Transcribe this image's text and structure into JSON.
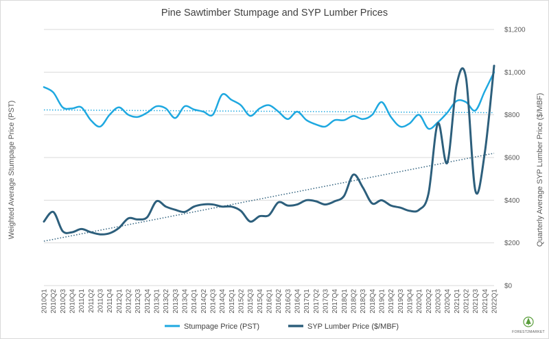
{
  "chart_data": {
    "type": "line",
    "title": "Pine Sawtimber Stumpage and SYP Lumber Prices",
    "ylabel_left": "Weighted Average Stumpage Price (PST)",
    "ylabel_right": "Quarterly Average SYP Lumber Price ($/MBF)",
    "categories": [
      "2010Q1",
      "2010Q2",
      "2010Q3",
      "2010Q4",
      "2011Q1",
      "2011Q2",
      "2011Q3",
      "2011Q4",
      "2012Q1",
      "2012Q2",
      "2012Q3",
      "2012Q4",
      "2013Q1",
      "2013Q2",
      "2013Q3",
      "2013Q4",
      "2014Q1",
      "2014Q2",
      "2014Q3",
      "2014Q4",
      "2015Q1",
      "2015Q2",
      "2015Q3",
      "2015Q4",
      "2016Q1",
      "2016Q2",
      "2016Q3",
      "2016Q4",
      "2017Q1",
      "2017Q2",
      "2017Q3",
      "2017Q4",
      "2018Q1",
      "2018Q2",
      "2018Q3",
      "2018Q4",
      "2019Q1",
      "2019Q2",
      "2019Q3",
      "2019Q4",
      "2020Q1",
      "2020Q2",
      "2020Q3",
      "2020Q4",
      "2021Q1",
      "2021Q2",
      "2021Q3",
      "2021Q4",
      "2022Q1"
    ],
    "right_axis": {
      "ylim": [
        0,
        1200
      ],
      "ticks": [
        0,
        200,
        400,
        600,
        800,
        1000,
        1200
      ],
      "tick_labels": [
        "$0",
        "$200",
        "$400",
        "$600",
        "$800",
        "$1,000",
        "$1,200"
      ]
    },
    "grid": true,
    "legend_position": "bottom",
    "series": [
      {
        "name": "Stumpage Price (PST)",
        "axis": "right_scale",
        "color": "#1ea8e0",
        "values": [
          930,
          905,
          835,
          830,
          835,
          775,
          745,
          800,
          835,
          800,
          790,
          810,
          840,
          830,
          785,
          840,
          825,
          815,
          800,
          895,
          870,
          845,
          795,
          830,
          845,
          815,
          780,
          815,
          775,
          755,
          745,
          775,
          775,
          795,
          780,
          800,
          860,
          790,
          745,
          760,
          800,
          735,
          765,
          810,
          865,
          860,
          820,
          910,
          1000
        ]
      },
      {
        "name": "SYP Lumber Price ($/MBF)",
        "axis": "right_scale",
        "color": "#2d5f7c",
        "values": [
          300,
          345,
          255,
          250,
          265,
          250,
          240,
          245,
          270,
          315,
          310,
          320,
          395,
          370,
          355,
          345,
          370,
          380,
          380,
          370,
          370,
          350,
          300,
          325,
          330,
          390,
          375,
          380,
          400,
          395,
          380,
          395,
          420,
          520,
          460,
          385,
          400,
          375,
          365,
          350,
          355,
          430,
          760,
          575,
          940,
          975,
          445,
          620,
          1030
        ]
      }
    ],
    "trendlines": [
      {
        "of": "Stumpage Price (PST)",
        "style": "dotted",
        "start": 823,
        "end": 810
      },
      {
        "of": "SYP Lumber Price ($/MBF)",
        "style": "dotted",
        "start": 208,
        "end": 620
      }
    ],
    "logo_text": "FOREST2MARKET"
  }
}
